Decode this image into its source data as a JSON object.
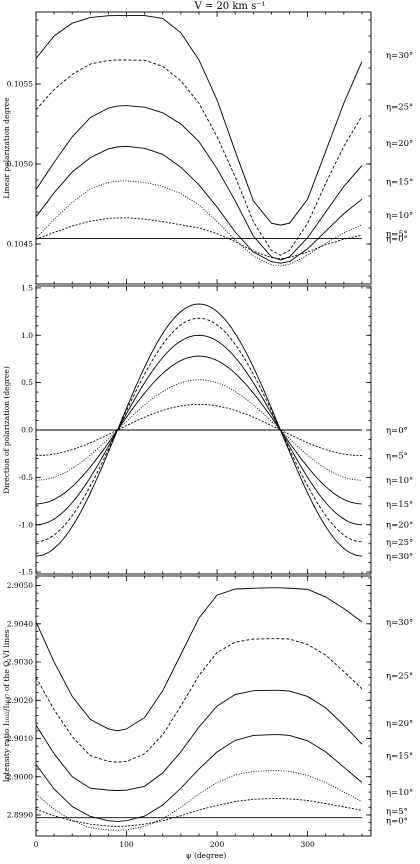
{
  "figure": {
    "title": "V = 20 km s⁻¹",
    "xlabel": "ψ (degree)"
  },
  "chart_data": [
    {
      "type": "line",
      "ylabel": "Linear polarization degree",
      "xlim": [
        0,
        370
      ],
      "ylim": [
        0.10425,
        0.10595
      ],
      "xticks": [
        0,
        100,
        200,
        300
      ],
      "yticks": [
        0.1045,
        0.105,
        0.1055
      ],
      "ytick_labels": [
        "0.1045",
        "0.1050",
        "0.1055"
      ],
      "psi": [
        0,
        20,
        40,
        60,
        80,
        90,
        100,
        120,
        140,
        160,
        180,
        200,
        220,
        240,
        260,
        270,
        280,
        300,
        320,
        340,
        360
      ],
      "series": [
        {
          "name": "η=0°",
          "label_y": 0.104535,
          "values": [
            0.104535,
            0.104535,
            0.104535,
            0.104535,
            0.104535,
            0.104535,
            0.104535,
            0.104535,
            0.104535,
            0.104535,
            0.104535,
            0.104535,
            0.104535,
            0.104535,
            0.104535,
            0.104535,
            0.104535,
            0.104535,
            0.104535,
            0.104535,
            0.104535
          ]
        },
        {
          "name": "η=5°",
          "label_y": 0.104565,
          "values": [
            0.10453,
            0.104572,
            0.104612,
            0.104643,
            0.10466,
            0.104663,
            0.104664,
            0.104655,
            0.10464,
            0.10462,
            0.1046,
            0.104565,
            0.104515,
            0.104455,
            0.104415,
            0.104408,
            0.104415,
            0.10445,
            0.104495,
            0.10453,
            0.104555
          ]
        },
        {
          "name": "η=10°",
          "label_y": 0.10468,
          "values": [
            0.104535,
            0.104655,
            0.10476,
            0.104845,
            0.104885,
            0.104893,
            0.104895,
            0.104885,
            0.10486,
            0.104815,
            0.104745,
            0.10464,
            0.104525,
            0.104425,
            0.10437,
            0.104362,
            0.104372,
            0.10443,
            0.104505,
            0.10457,
            0.10462
          ]
        },
        {
          "name": "η=15°",
          "label_y": 0.10489,
          "values": [
            0.10467,
            0.10482,
            0.10495,
            0.10504,
            0.105095,
            0.105107,
            0.10511,
            0.105098,
            0.10506,
            0.10498,
            0.10487,
            0.10473,
            0.104575,
            0.10445,
            0.10439,
            0.10438,
            0.10439,
            0.10447,
            0.10458,
            0.10469,
            0.10478
          ]
        },
        {
          "name": "η=20°",
          "label_y": 0.10513,
          "values": [
            0.10484,
            0.10501,
            0.10517,
            0.10529,
            0.10535,
            0.105362,
            0.105365,
            0.105355,
            0.10532,
            0.10525,
            0.10514,
            0.10497,
            0.10477,
            0.10455,
            0.10442,
            0.1044,
            0.10442,
            0.10454,
            0.1047,
            0.10486,
            0.10499
          ]
        },
        {
          "name": "η=25°",
          "label_y": 0.10536,
          "values": [
            0.10534,
            0.105465,
            0.10556,
            0.105625,
            0.105647,
            0.10565,
            0.10565,
            0.105648,
            0.10561,
            0.10552,
            0.10538,
            0.10517,
            0.10492,
            0.10464,
            0.10446,
            0.10443,
            0.10446,
            0.10463,
            0.10488,
            0.10511,
            0.1053
          ]
        },
        {
          "name": "η=30°",
          "label_y": 0.10568,
          "values": [
            0.10566,
            0.1058,
            0.10588,
            0.105915,
            0.105927,
            0.105928,
            0.105928,
            0.105928,
            0.10591,
            0.10582,
            0.10565,
            0.1054,
            0.10508,
            0.10477,
            0.10463,
            0.104618,
            0.10463,
            0.10478,
            0.10508,
            0.10538,
            0.10564
          ]
        }
      ]
    },
    {
      "type": "line",
      "ylabel": "Direction of polarization (degree)",
      "xlim": [
        0,
        370
      ],
      "ylim": [
        -1.52,
        1.52
      ],
      "xticks": [
        0,
        100,
        200,
        300
      ],
      "yticks": [
        -1.5,
        -1.0,
        -0.5,
        0.0,
        0.5,
        1.0,
        1.5
      ],
      "ytick_labels": [
        "-1.5",
        "-1.0",
        "-0.5",
        "0.0",
        "0.5",
        "1.0",
        "1.5"
      ],
      "psi": [
        0,
        20,
        40,
        60,
        80,
        90,
        100,
        120,
        140,
        160,
        180,
        200,
        220,
        240,
        260,
        270,
        280,
        300,
        320,
        340,
        360
      ],
      "series": [
        {
          "name": "η=0°",
          "label_y": 0.0,
          "amplitude": 0.0,
          "values": [
            0,
            0,
            0,
            0,
            0,
            0,
            0,
            0,
            0,
            0,
            0,
            0,
            0,
            0,
            0,
            0,
            0,
            0,
            0,
            0,
            0
          ]
        },
        {
          "name": "η=5°",
          "label_y": -0.27,
          "amplitude": 0.27,
          "values": [
            -0.27,
            -0.254,
            -0.207,
            -0.135,
            -0.047,
            0,
            0.047,
            0.135,
            0.207,
            0.254,
            0.27,
            0.254,
            0.207,
            0.135,
            0.047,
            0,
            -0.047,
            -0.135,
            -0.207,
            -0.254,
            -0.27
          ]
        },
        {
          "name": "η=10°",
          "label_y": -0.53,
          "amplitude": 0.53,
          "values": [
            -0.53,
            -0.498,
            -0.406,
            -0.265,
            -0.092,
            0,
            0.092,
            0.265,
            0.406,
            0.498,
            0.53,
            0.498,
            0.406,
            0.265,
            0.092,
            0,
            -0.092,
            -0.265,
            -0.406,
            -0.498,
            -0.53
          ]
        },
        {
          "name": "η=15°",
          "label_y": -0.78,
          "amplitude": 0.78,
          "values": [
            -0.78,
            -0.733,
            -0.598,
            -0.39,
            -0.135,
            0,
            0.135,
            0.39,
            0.598,
            0.733,
            0.78,
            0.733,
            0.598,
            0.39,
            0.135,
            0,
            -0.135,
            -0.39,
            -0.598,
            -0.733,
            -0.78
          ]
        },
        {
          "name": "η=20°",
          "label_y": -1.0,
          "amplitude": 1.0,
          "values": [
            -1.0,
            -0.94,
            -0.766,
            -0.5,
            -0.174,
            0,
            0.174,
            0.5,
            0.766,
            0.94,
            1.0,
            0.94,
            0.766,
            0.5,
            0.174,
            0,
            -0.174,
            -0.5,
            -0.766,
            -0.94,
            -1.0
          ]
        },
        {
          "name": "η=25°",
          "label_y": -1.18,
          "amplitude": 1.18,
          "values": [
            -1.18,
            -1.109,
            -0.904,
            -0.59,
            -0.205,
            0,
            0.205,
            0.59,
            0.904,
            1.109,
            1.18,
            1.109,
            0.904,
            0.59,
            0.205,
            0,
            -0.205,
            -0.59,
            -0.904,
            -1.109,
            -1.18
          ]
        },
        {
          "name": "η=30°",
          "label_y": -1.33,
          "amplitude": 1.33,
          "values": [
            -1.33,
            -1.25,
            -1.019,
            -0.665,
            -0.231,
            0,
            0.231,
            0.665,
            1.019,
            1.25,
            1.33,
            1.25,
            1.019,
            0.665,
            0.231,
            0,
            -0.231,
            -0.665,
            -1.019,
            -1.25,
            -1.33
          ]
        }
      ]
    },
    {
      "type": "line",
      "ylabel": "Intensity ratio I₁₀₃₂/I₁₀₃₇ of the O VI lines",
      "xlim": [
        0,
        370
      ],
      "ylim": [
        2.89845,
        2.90525
      ],
      "xticks": [
        0,
        100,
        200,
        300
      ],
      "xtick_labels": [
        "0",
        "100",
        "200",
        "300"
      ],
      "yticks": [
        2.899,
        2.9,
        2.901,
        2.902,
        2.903,
        2.904,
        2.905
      ],
      "ytick_labels": [
        "2.8990",
        "2.9000",
        "2.9010",
        "2.9020",
        "2.9030",
        "2.9040",
        "2.9050"
      ],
      "psi": [
        0,
        20,
        40,
        60,
        80,
        90,
        100,
        120,
        140,
        160,
        180,
        200,
        220,
        240,
        260,
        270,
        280,
        300,
        320,
        340,
        360
      ],
      "series": [
        {
          "name": "η=0°",
          "label_y": 2.89885,
          "values": [
            2.89893,
            2.89893,
            2.89893,
            2.89893,
            2.89893,
            2.89893,
            2.89893,
            2.89893,
            2.89893,
            2.89893,
            2.89893,
            2.89893,
            2.89893,
            2.89893,
            2.89893,
            2.89893,
            2.89893,
            2.89893,
            2.89893,
            2.89893,
            2.89893
          ]
        },
        {
          "name": "η=5°",
          "label_y": 2.8991,
          "values": [
            2.89915,
            2.89898,
            2.89885,
            2.89876,
            2.89871,
            2.8987,
            2.89871,
            2.89876,
            2.89885,
            2.89898,
            2.89913,
            2.89925,
            2.89935,
            2.89941,
            2.89943,
            2.89943,
            2.89942,
            2.89938,
            2.8993,
            2.89921,
            2.89912
          ]
        },
        {
          "name": "η=10°",
          "label_y": 2.8996,
          "values": [
            2.89955,
            2.89915,
            2.89885,
            2.89866,
            2.89861,
            2.8986,
            2.89861,
            2.8987,
            2.8989,
            2.8992,
            2.89955,
            2.89985,
            2.90005,
            2.90014,
            2.90016,
            2.90016,
            2.90014,
            2.90004,
            2.89985,
            2.8996,
            2.89935
          ]
        },
        {
          "name": "η=15°",
          "label_y": 2.90055,
          "values": [
            2.90032,
            2.89968,
            2.89922,
            2.89896,
            2.89885,
            2.89883,
            2.89885,
            2.89897,
            2.89926,
            2.8997,
            2.9002,
            2.90065,
            2.90095,
            2.90108,
            2.9011,
            2.9011,
            2.90108,
            2.90094,
            2.90065,
            2.90025,
            2.89985
          ]
        },
        {
          "name": "η=20°",
          "label_y": 2.9014,
          "values": [
            2.90135,
            2.9006,
            2.9,
            2.8997,
            2.89965,
            2.89964,
            2.89965,
            2.89975,
            2.9001,
            2.90065,
            2.9013,
            2.90185,
            2.90215,
            2.90225,
            2.90226,
            2.90226,
            2.90224,
            2.9021,
            2.9018,
            2.90135,
            2.90085
          ]
        },
        {
          "name": "η=25°",
          "label_y": 2.90265,
          "values": [
            2.9026,
            2.90175,
            2.90105,
            2.90055,
            2.9004,
            2.90038,
            2.9004,
            2.9006,
            2.9011,
            2.90185,
            2.90265,
            2.90325,
            2.90352,
            2.9036,
            2.90361,
            2.90361,
            2.9036,
            2.90346,
            2.90318,
            2.90275,
            2.9023
          ]
        },
        {
          "name": "η=30°",
          "label_y": 2.90405,
          "values": [
            2.90405,
            2.903,
            2.9021,
            2.9015,
            2.90125,
            2.9012,
            2.90125,
            2.90155,
            2.90225,
            2.9032,
            2.90415,
            2.90475,
            2.90491,
            2.90493,
            2.90494,
            2.90494,
            2.90493,
            2.9049,
            2.9047,
            2.9044,
            2.90405
          ]
        }
      ]
    }
  ]
}
